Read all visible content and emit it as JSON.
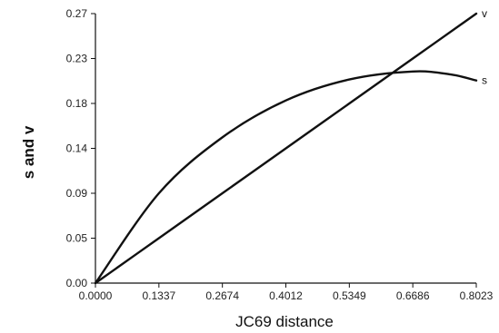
{
  "chart_data": {
    "type": "line",
    "title": "",
    "xlabel": "JC69 distance",
    "ylabel": "s and v",
    "xlim": [
      0,
      0.8023
    ],
    "ylim": [
      0,
      0.27
    ],
    "x_ticks": [
      "0.0000",
      "0.1337",
      "0.2674",
      "0.4012",
      "0.5349",
      "0.6686",
      "0.8023"
    ],
    "y_ticks": [
      "0.00",
      "0.05",
      "0.09",
      "0.14",
      "0.18",
      "0.23",
      "0.27"
    ],
    "grid": false,
    "legend": "inline-end-labels",
    "series": [
      {
        "name": "v",
        "x": [
          0,
          0.1337,
          0.2674,
          0.4012,
          0.5349,
          0.6686,
          0.8023
        ],
        "y": [
          0,
          0.045,
          0.09,
          0.135,
          0.18,
          0.225,
          0.27
        ]
      },
      {
        "name": "s",
        "x": [
          0,
          0.1337,
          0.2674,
          0.4012,
          0.5349,
          0.6686,
          0.7486,
          0.8023
        ],
        "y": [
          0,
          0.09,
          0.146,
          0.183,
          0.204,
          0.212,
          0.209,
          0.203
        ]
      }
    ],
    "colors": {
      "lines": "#111111",
      "axes": "#111111"
    }
  }
}
